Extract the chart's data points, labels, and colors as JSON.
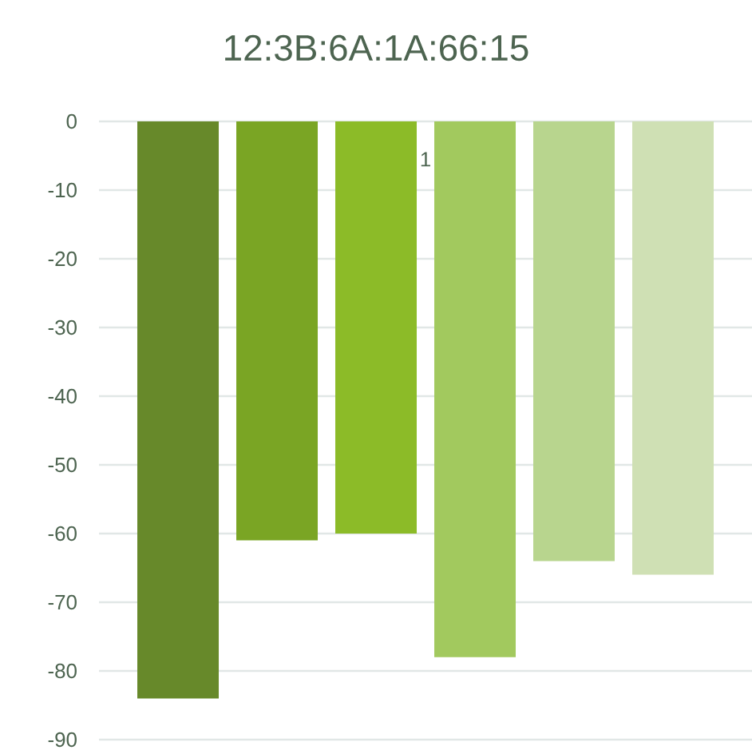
{
  "chart_data": {
    "type": "bar",
    "title": "12:3B:6A:1A:66:15",
    "categories": [
      "1"
    ],
    "series": [
      {
        "color": "#67892a",
        "values": [
          -84
        ]
      },
      {
        "color": "#7aa524",
        "values": [
          -61
        ]
      },
      {
        "color": "#8cbb28",
        "values": [
          -60
        ]
      },
      {
        "color": "#a2c95e",
        "values": [
          -78
        ]
      },
      {
        "color": "#b8d58e",
        "values": [
          -64
        ]
      },
      {
        "color": "#cfe0b4",
        "values": [
          -66
        ]
      }
    ],
    "ylim": [
      -90,
      0
    ],
    "yticks": [
      -90,
      -80,
      -70,
      -60,
      -50,
      -40,
      -30,
      -20,
      -10,
      0
    ],
    "grid": "y"
  }
}
